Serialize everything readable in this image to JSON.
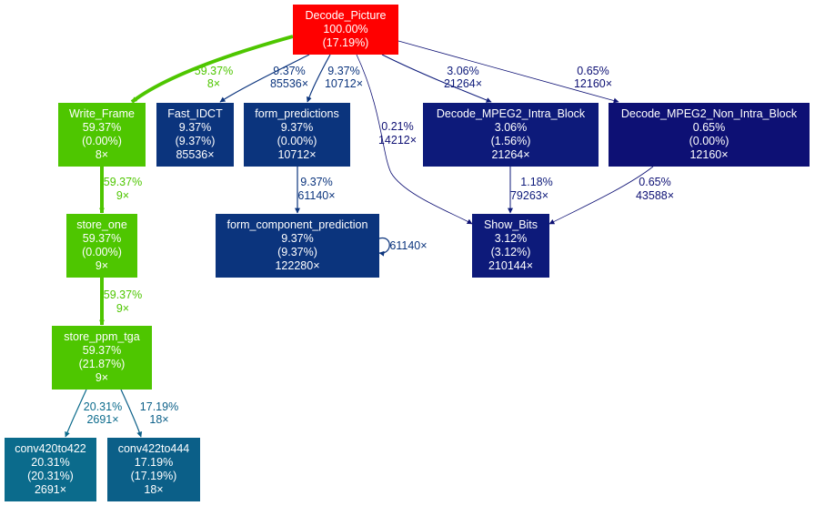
{
  "nodes": [
    {
      "id": "decode_picture",
      "name": "Decode_Picture",
      "total": "100.00%",
      "self": "(17.19%)",
      "color": "#ff0000"
    },
    {
      "id": "write_frame",
      "name": "Write_Frame",
      "total": "59.37%",
      "self": "(0.00%)",
      "calls": "8×",
      "color": "#4ec600"
    },
    {
      "id": "fast_idct",
      "name": "Fast_IDCT",
      "total": "9.37%",
      "self": "(9.37%)",
      "calls": "85536×",
      "color": "#0b347d"
    },
    {
      "id": "form_predictions",
      "name": "form_predictions",
      "total": "9.37%",
      "self": "(0.00%)",
      "calls": "10712×",
      "color": "#0b347d"
    },
    {
      "id": "decode_intra",
      "name": "Decode_MPEG2_Intra_Block",
      "total": "3.06%",
      "self": "(1.56%)",
      "calls": "21264×",
      "color": "#0d1a7a"
    },
    {
      "id": "decode_non_intra",
      "name": "Decode_MPEG2_Non_Intra_Block",
      "total": "0.65%",
      "self": "(0.00%)",
      "calls": "12160×",
      "color": "#0d1074"
    },
    {
      "id": "store_one",
      "name": "store_one",
      "total": "59.37%",
      "self": "(0.00%)",
      "calls": "9×",
      "color": "#4ec600"
    },
    {
      "id": "form_component_prediction",
      "name": "form_component_prediction",
      "total": "9.37%",
      "self": "(9.37%)",
      "calls": "122280×",
      "color": "#0b347d"
    },
    {
      "id": "show_bits",
      "name": "Show_Bits",
      "total": "3.12%",
      "self": "(3.12%)",
      "calls": "210144×",
      "color": "#0d1a7a"
    },
    {
      "id": "store_ppm_tga",
      "name": "store_ppm_tga",
      "total": "59.37%",
      "self": "(21.87%)",
      "calls": "9×",
      "color": "#4ec600"
    },
    {
      "id": "conv420to422",
      "name": "conv420to422",
      "total": "20.31%",
      "self": "(20.31%)",
      "calls": "2691×",
      "color": "#0b6b8c"
    },
    {
      "id": "conv422to444",
      "name": "conv422to444",
      "total": "17.19%",
      "self": "(17.19%)",
      "calls": "18×",
      "color": "#0b5f88"
    }
  ],
  "edges": [
    {
      "id": "e-dp-wf",
      "pct": "59.37%",
      "calls": "8×",
      "color": "#4ec600"
    },
    {
      "id": "e-dp-fi",
      "pct": "9.37%",
      "calls": "85536×",
      "color": "#0b347d"
    },
    {
      "id": "e-dp-fp",
      "pct": "9.37%",
      "calls": "10712×",
      "color": "#0b347d"
    },
    {
      "id": "e-dp-sb",
      "pct": "0.21%",
      "calls": "14212×",
      "color": "#0d0f73"
    },
    {
      "id": "e-dp-intra",
      "pct": "3.06%",
      "calls": "21264×",
      "color": "#0d1a7a"
    },
    {
      "id": "e-dp-nonintra",
      "pct": "0.65%",
      "calls": "12160×",
      "color": "#0d1074"
    },
    {
      "id": "e-wf-so",
      "pct": "59.37%",
      "calls": "9×",
      "color": "#4ec600"
    },
    {
      "id": "e-fp-fcp",
      "pct": "9.37%",
      "calls": "61140×",
      "color": "#0b347d"
    },
    {
      "id": "e-fcp-self",
      "pct": "",
      "calls": "61140×",
      "color": "#0b347d"
    },
    {
      "id": "e-intra-sb",
      "pct": "1.18%",
      "calls": "79263×",
      "color": "#0d1a7a"
    },
    {
      "id": "e-nonintra-sb",
      "pct": "0.65%",
      "calls": "43588×",
      "color": "#0d1074"
    },
    {
      "id": "e-so-spt",
      "pct": "59.37%",
      "calls": "9×",
      "color": "#4ec600"
    },
    {
      "id": "e-spt-c420",
      "pct": "20.31%",
      "calls": "2691×",
      "color": "#0b6b8c"
    },
    {
      "id": "e-spt-c422",
      "pct": "17.19%",
      "calls": "18×",
      "color": "#0b5f88"
    }
  ]
}
